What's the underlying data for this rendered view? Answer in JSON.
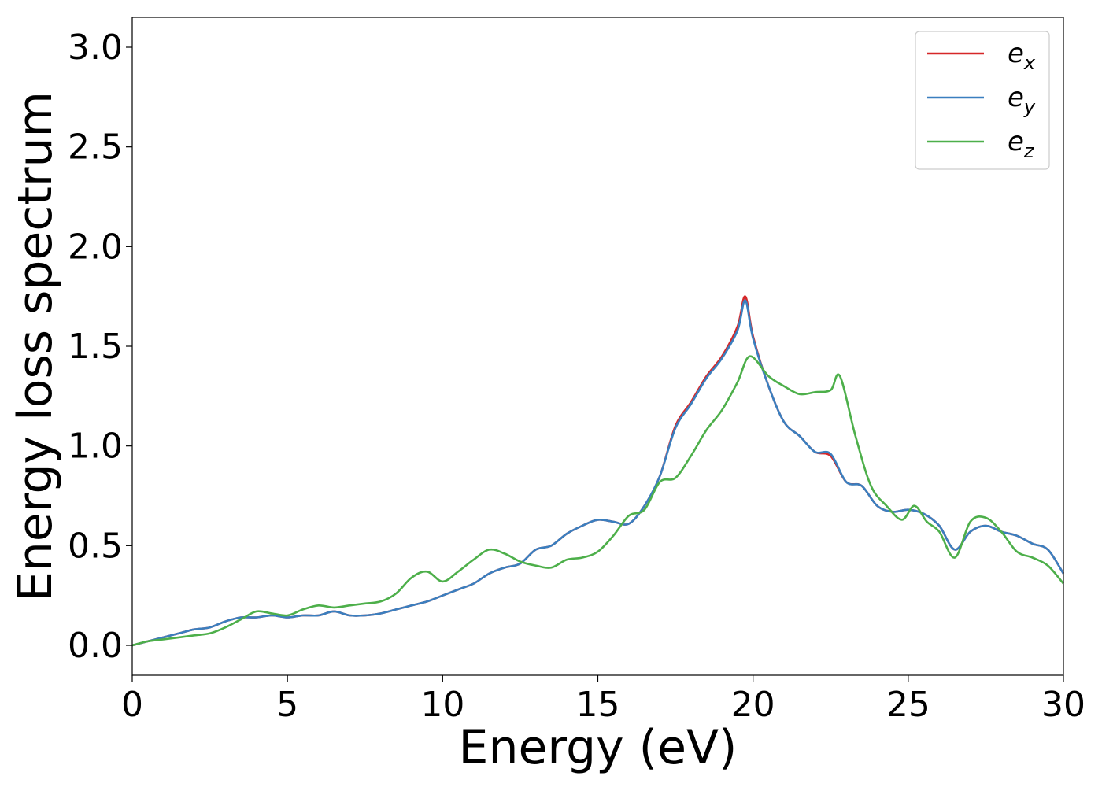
{
  "chart_data": {
    "type": "line",
    "title": "",
    "xlabel": "Energy (eV)",
    "ylabel": "Energy loss spectrum",
    "xlim": [
      0,
      30
    ],
    "ylim": [
      -0.15,
      3.15
    ],
    "xticks": [
      0,
      5,
      10,
      15,
      20,
      25,
      30
    ],
    "xtick_labels": [
      "0",
      "5",
      "10",
      "15",
      "20",
      "25",
      "30"
    ],
    "yticks": [
      0.0,
      0.5,
      1.0,
      1.5,
      2.0,
      2.5,
      3.0
    ],
    "ytick_labels": [
      "0.0",
      "0.5",
      "1.0",
      "1.5",
      "2.0",
      "2.5",
      "3.0"
    ],
    "grid": false,
    "legend": {
      "placement": "top-right"
    },
    "series": [
      {
        "name": "e_x",
        "label_base": "e",
        "label_sub": "x",
        "color": "#d62728",
        "x": [
          0,
          0.5,
          1,
          1.5,
          2,
          2.5,
          3,
          3.5,
          4,
          4.5,
          5,
          5.5,
          6,
          6.5,
          7,
          7.5,
          8,
          8.5,
          9,
          9.5,
          10,
          10.5,
          11,
          11.5,
          12,
          12.5,
          13,
          13.5,
          14,
          14.5,
          15,
          15.5,
          16,
          16.5,
          17,
          17.5,
          18,
          18.5,
          19,
          19.5,
          19.75,
          20,
          20.5,
          21,
          21.5,
          22,
          22.5,
          23,
          23.5,
          24,
          24.5,
          25,
          25.5,
          26,
          26.5,
          27,
          27.5,
          28,
          28.5,
          29,
          29.5,
          30
        ],
        "y": [
          0.0,
          0.02,
          0.04,
          0.06,
          0.08,
          0.09,
          0.12,
          0.14,
          0.14,
          0.15,
          0.14,
          0.15,
          0.15,
          0.17,
          0.15,
          0.15,
          0.16,
          0.18,
          0.2,
          0.22,
          0.25,
          0.28,
          0.31,
          0.36,
          0.39,
          0.41,
          0.48,
          0.5,
          0.56,
          0.6,
          0.63,
          0.62,
          0.61,
          0.7,
          0.85,
          1.1,
          1.22,
          1.35,
          1.45,
          1.6,
          1.75,
          1.55,
          1.3,
          1.12,
          1.05,
          0.97,
          0.95,
          0.82,
          0.8,
          0.7,
          0.67,
          0.68,
          0.66,
          0.6,
          0.48,
          0.57,
          0.6,
          0.57,
          0.55,
          0.51,
          0.48,
          0.36
        ]
      },
      {
        "name": "e_y",
        "label_base": "e",
        "label_sub": "y",
        "color": "#3a7fbf",
        "x": [
          0,
          0.5,
          1,
          1.5,
          2,
          2.5,
          3,
          3.5,
          4,
          4.5,
          5,
          5.5,
          6,
          6.5,
          7,
          7.5,
          8,
          8.5,
          9,
          9.5,
          10,
          10.5,
          11,
          11.5,
          12,
          12.5,
          13,
          13.5,
          14,
          14.5,
          15,
          15.5,
          16,
          16.5,
          17,
          17.5,
          18,
          18.5,
          19,
          19.5,
          19.75,
          20,
          20.5,
          21,
          21.5,
          22,
          22.5,
          23,
          23.5,
          24,
          24.5,
          25,
          25.5,
          26,
          26.5,
          27,
          27.5,
          28,
          28.5,
          29,
          29.5,
          30
        ],
        "y": [
          0.0,
          0.02,
          0.04,
          0.06,
          0.08,
          0.09,
          0.12,
          0.14,
          0.14,
          0.15,
          0.14,
          0.15,
          0.15,
          0.17,
          0.15,
          0.15,
          0.16,
          0.18,
          0.2,
          0.22,
          0.25,
          0.28,
          0.31,
          0.36,
          0.39,
          0.41,
          0.48,
          0.5,
          0.56,
          0.6,
          0.63,
          0.62,
          0.61,
          0.7,
          0.85,
          1.09,
          1.21,
          1.34,
          1.44,
          1.58,
          1.73,
          1.54,
          1.3,
          1.12,
          1.05,
          0.97,
          0.96,
          0.82,
          0.8,
          0.7,
          0.67,
          0.68,
          0.66,
          0.6,
          0.48,
          0.57,
          0.6,
          0.57,
          0.55,
          0.51,
          0.48,
          0.36
        ]
      },
      {
        "name": "e_z",
        "label_base": "e",
        "label_sub": "z",
        "color": "#4daf4a",
        "x": [
          0,
          0.5,
          1,
          1.5,
          2,
          2.5,
          3,
          3.5,
          4,
          4.5,
          5,
          5.5,
          6,
          6.5,
          7,
          7.5,
          8,
          8.5,
          9,
          9.5,
          10,
          10.5,
          11,
          11.5,
          12,
          12.5,
          13,
          13.5,
          14,
          14.5,
          15,
          15.5,
          16,
          16.5,
          17,
          17.5,
          18,
          18.5,
          19,
          19.5,
          19.9,
          20.5,
          21,
          21.5,
          22,
          22.5,
          22.8,
          23.3,
          23.8,
          24.3,
          24.8,
          25.2,
          25.6,
          26,
          26.5,
          27,
          27.5,
          28,
          28.5,
          29,
          29.5,
          30
        ],
        "y": [
          0.0,
          0.02,
          0.03,
          0.04,
          0.05,
          0.06,
          0.09,
          0.13,
          0.17,
          0.16,
          0.15,
          0.18,
          0.2,
          0.19,
          0.2,
          0.21,
          0.22,
          0.26,
          0.34,
          0.37,
          0.32,
          0.37,
          0.43,
          0.48,
          0.46,
          0.42,
          0.4,
          0.39,
          0.43,
          0.44,
          0.47,
          0.55,
          0.65,
          0.68,
          0.82,
          0.84,
          0.95,
          1.08,
          1.18,
          1.32,
          1.45,
          1.35,
          1.3,
          1.26,
          1.27,
          1.28,
          1.35,
          1.05,
          0.8,
          0.7,
          0.63,
          0.7,
          0.62,
          0.57,
          0.44,
          0.62,
          0.64,
          0.57,
          0.47,
          0.44,
          0.4,
          0.31
        ]
      }
    ]
  }
}
